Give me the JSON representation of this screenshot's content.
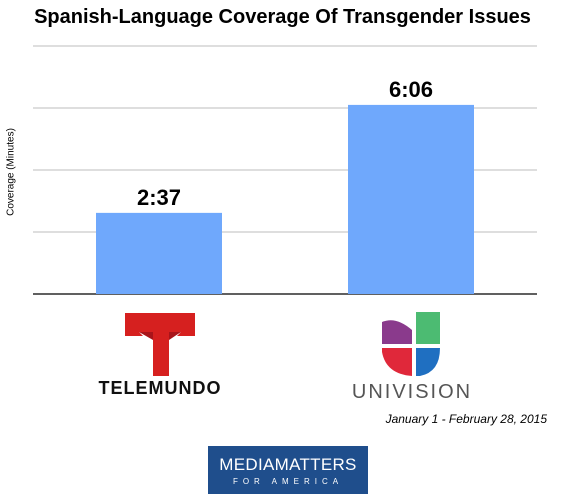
{
  "chart_data": {
    "type": "bar",
    "title": "Spanish-Language Coverage Of Transgender Issues",
    "ylabel": "Coverage (Minutes)",
    "xlabel": "",
    "categories": [
      "Telemundo",
      "Univision"
    ],
    "values": [
      2.617,
      6.1
    ],
    "data_labels": [
      "2:37",
      "6:06"
    ],
    "ylim": [
      0,
      8
    ],
    "grid": true,
    "bar_color": "#6fa8fc",
    "footnote": "January 1 - February 28, 2015"
  },
  "logos": {
    "telemundo": "TELEMUNDO",
    "univision": "UNIVISION",
    "mediamatters_main": "MEDIAMATTERS",
    "mediamatters_sub": "FOR AMERICA"
  },
  "colors": {
    "telemundo_red": "#d6201f",
    "mediamatters_blue": "#1f4e8c",
    "univision_green": "#4cbb72",
    "univision_blue": "#1f6fc1",
    "univision_red": "#e0283a",
    "univision_purple": "#8a3a8c"
  }
}
